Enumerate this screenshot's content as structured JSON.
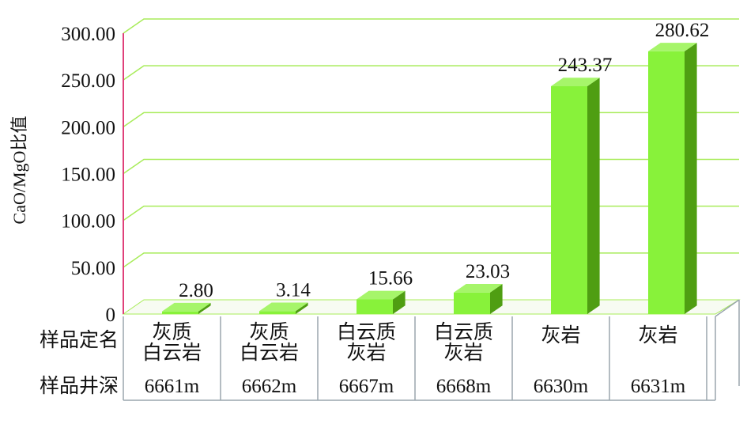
{
  "chart_data": {
    "type": "bar",
    "ylabel": "CaO/MgO比值",
    "ylim": [
      0,
      300
    ],
    "y_ticks": [
      "0",
      "50.00",
      "100.00",
      "150.00",
      "200.00",
      "250.00",
      "300.00"
    ],
    "categories": [
      {
        "name_lines": [
          "灰质",
          "白云岩"
        ],
        "depth": "6661m"
      },
      {
        "name_lines": [
          "灰质",
          "白云岩"
        ],
        "depth": "6662m"
      },
      {
        "name_lines": [
          "白云质",
          "灰岩"
        ],
        "depth": "6667m"
      },
      {
        "name_lines": [
          "白云质",
          "灰岩"
        ],
        "depth": "6668m"
      },
      {
        "name_lines": [
          "灰岩"
        ],
        "depth": "6630m"
      },
      {
        "name_lines": [
          "灰岩"
        ],
        "depth": "6631m"
      }
    ],
    "values": [
      2.8,
      3.14,
      15.66,
      23.03,
      243.37,
      280.62
    ],
    "value_labels": [
      "2.80",
      "3.14",
      "15.66",
      "23.03",
      "243.37",
      "280.62"
    ],
    "table_row_headers": [
      "样品定名",
      "样品井深"
    ],
    "grid": true,
    "legend": "none",
    "colors": {
      "bar_front": "#88f23a",
      "bar_top": "#a6f56a",
      "bar_side": "#4f9e12",
      "gridline": "#a8ec5a",
      "y_axis": "#e0417a",
      "table_border": "#9aa6ae"
    }
  }
}
